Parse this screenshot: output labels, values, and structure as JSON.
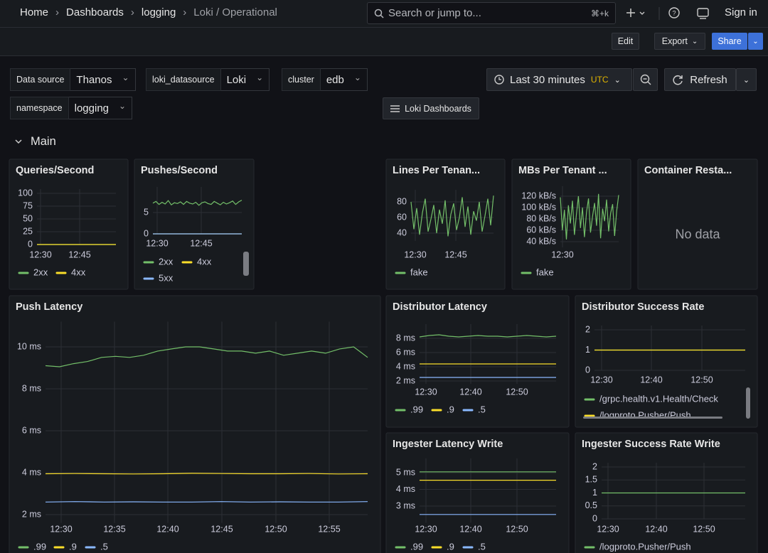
{
  "breadcrumbs": [
    "Home",
    "Dashboards",
    "logging",
    "Loki / Operational"
  ],
  "search": {
    "placeholder": "Search or jump to...",
    "shortcut": "⌘+k"
  },
  "sign_in": "Sign in",
  "toolbar": [
    "Edit",
    "Export",
    "Share"
  ],
  "variables": [
    {
      "label": "Data source",
      "value": "Thanos"
    },
    {
      "label": "loki_datasource",
      "value": "Loki"
    },
    {
      "label": "cluster",
      "value": "edb"
    },
    {
      "label": "namespace",
      "value": "logging"
    }
  ],
  "time_picker": {
    "range": "Last 30 minutes",
    "timezone": "UTC"
  },
  "refresh": "Refresh",
  "dashboard_link": "Loki Dashboards",
  "row_title": "Main",
  "panels": [
    {
      "title": "Queries/Second",
      "ylim": [
        0,
        100
      ],
      "yticks": [
        0,
        25,
        50,
        75,
        100
      ],
      "xticks": [
        "12:30",
        "12:45"
      ],
      "series": [
        {
          "name": "2xx",
          "color": "#73bf69",
          "values": [
            0,
            0,
            0,
            0,
            0,
            0,
            0,
            0,
            0,
            0
          ]
        },
        {
          "name": "4xx",
          "color": "#fade2a",
          "values": [
            0,
            0,
            0,
            0,
            0,
            0,
            0,
            0,
            0,
            0
          ]
        }
      ]
    },
    {
      "title": "Pushes/Second",
      "ylim": [
        0,
        10
      ],
      "yticks": [
        0,
        5
      ],
      "xticks": [
        "12:30",
        "12:45"
      ],
      "series": [
        {
          "name": "2xx",
          "color": "#73bf69",
          "values": [
            7.2,
            7.6,
            6.9,
            7.4,
            7.0,
            7.8,
            6.8,
            7.3,
            7.1,
            7.5,
            6.9,
            7.6,
            7.2,
            7.0,
            7.4,
            6.7,
            7.3,
            7.5,
            7.1,
            6.9,
            7.6,
            7.2,
            6.8,
            7.4,
            7.0,
            7.3,
            7.7,
            6.9,
            7.5,
            7.9
          ]
        },
        {
          "name": "4xx",
          "color": "#fade2a",
          "values": [
            0,
            0,
            0,
            0,
            0,
            0,
            0,
            0,
            0,
            0
          ]
        },
        {
          "name": "5xx",
          "color": "#8ab8ff",
          "values": [
            0,
            0,
            0,
            0,
            0,
            0,
            0,
            0,
            0,
            0
          ]
        }
      ]
    },
    {
      "title": "Lines Per Tenan...",
      "ylim": [
        30,
        90
      ],
      "yticks": [
        40,
        60,
        80
      ],
      "xticks": [
        "12:30",
        "12:45"
      ],
      "series": [
        {
          "name": "fake",
          "color": "#73bf69",
          "values": [
            80,
            45,
            72,
            38,
            66,
            84,
            42,
            58,
            76,
            40,
            70,
            52,
            82,
            36,
            64,
            78,
            44,
            60,
            86,
            48,
            74,
            38,
            68,
            56,
            80,
            42,
            62,
            84,
            50,
            88
          ]
        }
      ]
    },
    {
      "title": "MBs Per Tenant ...",
      "ylim": [
        30,
        130
      ],
      "yticks": [
        {
          "value": 40,
          "label": "40 kB/s"
        },
        {
          "value": 60,
          "label": "60 kB/s"
        },
        {
          "value": 80,
          "label": "80 kB/s"
        },
        {
          "value": 100,
          "label": "100 kB/s"
        },
        {
          "value": 120,
          "label": "120 kB/s"
        }
      ],
      "xticks": [
        "12:30"
      ],
      "series": [
        {
          "name": "fake",
          "color": "#73bf69",
          "values": [
            118,
            60,
            96,
            44,
            104,
            72,
            112,
            52,
            88,
            120,
            64,
            100,
            48,
            92,
            116,
            56,
            84,
            108,
            68,
            124,
            46,
            98,
            76,
            114,
            58,
            90,
            106,
            50,
            94,
            122
          ]
        }
      ]
    },
    {
      "title": "Container Resta...",
      "message": "No data"
    },
    {
      "title": "Push Latency",
      "ylim": [
        1.6,
        11
      ],
      "yticks": [
        {
          "value": 2,
          "label": "2 ms"
        },
        {
          "value": 4,
          "label": "4 ms"
        },
        {
          "value": 6,
          "label": "6 ms"
        },
        {
          "value": 8,
          "label": "8 ms"
        },
        {
          "value": 10,
          "label": "10 ms"
        }
      ],
      "xticks": [
        "12:30",
        "12:35",
        "12:40",
        "12:45",
        "12:50",
        "12:55"
      ],
      "series": [
        {
          "name": ".99",
          "color": "#73bf69",
          "values": [
            9.1,
            9.05,
            9.2,
            9.3,
            9.5,
            9.55,
            9.5,
            9.6,
            9.8,
            9.9,
            10.0,
            10.0,
            9.9,
            9.8,
            9.8,
            9.7,
            9.8,
            9.6,
            9.7,
            9.8,
            9.7,
            9.9,
            10.0,
            9.5
          ]
        },
        {
          "name": ".9",
          "color": "#fade2a",
          "values": [
            3.95,
            3.96,
            3.95,
            3.94,
            3.95,
            3.97,
            3.96,
            3.95,
            3.95,
            3.96,
            3.94,
            3.95
          ]
        },
        {
          "name": ".5",
          "color": "#8ab8ff",
          "values": [
            2.6,
            2.62,
            2.6,
            2.61,
            2.6,
            2.6,
            2.62,
            2.6,
            2.61,
            2.6,
            2.6,
            2.62
          ]
        }
      ]
    },
    {
      "title": "Distributor Latency",
      "ylim": [
        1.6,
        9.4
      ],
      "yticks": [
        {
          "value": 2,
          "label": "2 ms"
        },
        {
          "value": 4,
          "label": "4 ms"
        },
        {
          "value": 6,
          "label": "6 ms"
        },
        {
          "value": 8,
          "label": "8 ms"
        }
      ],
      "xticks": [
        "12:30",
        "12:40",
        "12:50"
      ],
      "series": [
        {
          "name": ".99",
          "color": "#73bf69",
          "values": [
            8.2,
            8.4,
            8.5,
            8.3,
            8.2,
            8.3,
            8.4,
            8.3,
            8.3,
            8.2,
            8.3,
            8.4,
            8.3,
            8.2,
            8.3
          ]
        },
        {
          "name": ".9",
          "color": "#fade2a",
          "values": [
            4.4,
            4.4,
            4.4,
            4.4,
            4.4,
            4.4,
            4.4,
            4.4
          ]
        },
        {
          "name": ".5",
          "color": "#8ab8ff",
          "values": [
            2.5,
            2.5,
            2.5,
            2.5,
            2.5,
            2.5,
            2.5,
            2.5
          ]
        }
      ]
    },
    {
      "title": "Distributor Success Rate",
      "ylim": [
        0,
        2
      ],
      "yticks": [
        0,
        1,
        2
      ],
      "xticks": [
        "12:30",
        "12:40",
        "12:50"
      ],
      "series": [
        {
          "name": "/grpc.health.v1.Health/Check",
          "color": "#73bf69",
          "values": [
            1,
            1,
            1,
            1,
            1,
            1,
            1,
            1,
            1,
            1
          ]
        },
        {
          "name": "/logproto.Pusher/Push",
          "color": "#fade2a",
          "values": [
            1,
            1,
            1,
            1,
            1,
            1,
            1,
            1,
            1,
            1
          ]
        }
      ]
    },
    {
      "title": "Ingester Latency Write",
      "ylim": [
        2,
        5.6
      ],
      "yticks": [
        {
          "value": 3,
          "label": "3 ms"
        },
        {
          "value": 4,
          "label": "4 ms"
        },
        {
          "value": 5,
          "label": "5 ms"
        }
      ],
      "xticks": [
        "12:30",
        "12:40",
        "12:50"
      ],
      "series": [
        {
          "name": ".99",
          "color": "#73bf69",
          "values": [
            5.05,
            5.05,
            5.05,
            5.05,
            5.05,
            5.05,
            5.05,
            5.05
          ]
        },
        {
          "name": ".9",
          "color": "#fade2a",
          "values": [
            4.55,
            4.55,
            4.55,
            4.55,
            4.55,
            4.55,
            4.55,
            4.55
          ]
        },
        {
          "name": ".5",
          "color": "#8ab8ff",
          "values": [
            2.5,
            2.5,
            2.5,
            2.5,
            2.5,
            2.5,
            2.5,
            2.5
          ]
        }
      ]
    },
    {
      "title": "Ingester Success Rate Write",
      "ylim": [
        0,
        2
      ],
      "yticks": [
        0,
        0.5,
        1,
        1.5,
        2
      ],
      "xticks": [
        "12:30",
        "12:40",
        "12:50"
      ],
      "series": [
        {
          "name": "/logproto.Pusher/Push",
          "color": "#73bf69",
          "values": [
            1,
            1,
            1,
            1,
            1,
            1,
            1,
            1,
            1,
            1
          ]
        }
      ]
    }
  ]
}
